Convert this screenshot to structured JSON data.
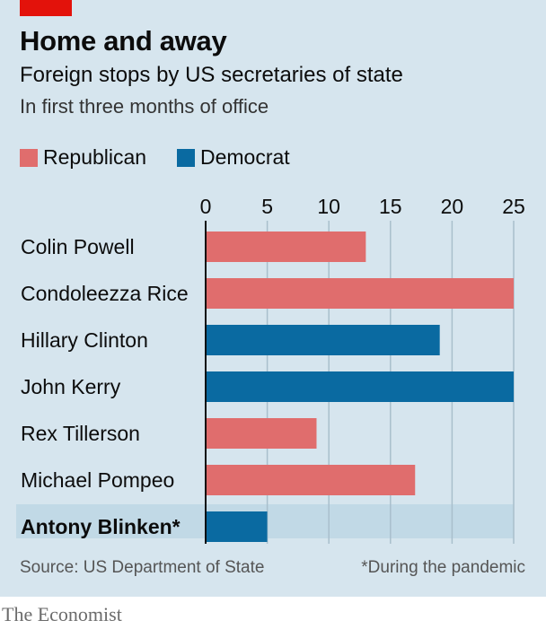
{
  "header": {
    "title": "Home and away",
    "subtitle": "Foreign stops by US secretaries of state",
    "subtitle2": "In first three months of office"
  },
  "legend": [
    {
      "label": "Republican",
      "color": "#e06d6d"
    },
    {
      "label": "Democrat",
      "color": "#0a6aa1"
    }
  ],
  "chart_data": {
    "type": "bar",
    "orientation": "horizontal",
    "categories": [
      "Colin Powell",
      "Condoleezza Rice",
      "Hillary Clinton",
      "John Kerry",
      "Rex Tillerson",
      "Michael Pompeo",
      "Antony Blinken*"
    ],
    "values": [
      13,
      25,
      19,
      25,
      9,
      17,
      5
    ],
    "party": [
      "Republican",
      "Republican",
      "Democrat",
      "Democrat",
      "Republican",
      "Republican",
      "Democrat"
    ],
    "highlighted_category": "Antony Blinken*",
    "xlim": [
      0,
      25
    ],
    "x_ticks": [
      "0",
      "5",
      "10",
      "15",
      "20",
      "25"
    ],
    "x_tick_values": [
      0,
      5,
      10,
      15,
      20,
      25
    ],
    "axis_position": "top",
    "grid": true,
    "legend_position": "top-left"
  },
  "footer": {
    "source": "Source: US Department of State",
    "note": "*During the pandemic",
    "brand": "The Economist"
  },
  "colors": {
    "background": "#d6e5ee",
    "highlight_band": "#c1d9e6",
    "gridline": "#a9bfcc",
    "axis": "#0c0c0c",
    "republican": "#e06d6d",
    "democrat": "#0a6aa1",
    "brand_tag": "#e3120b"
  }
}
